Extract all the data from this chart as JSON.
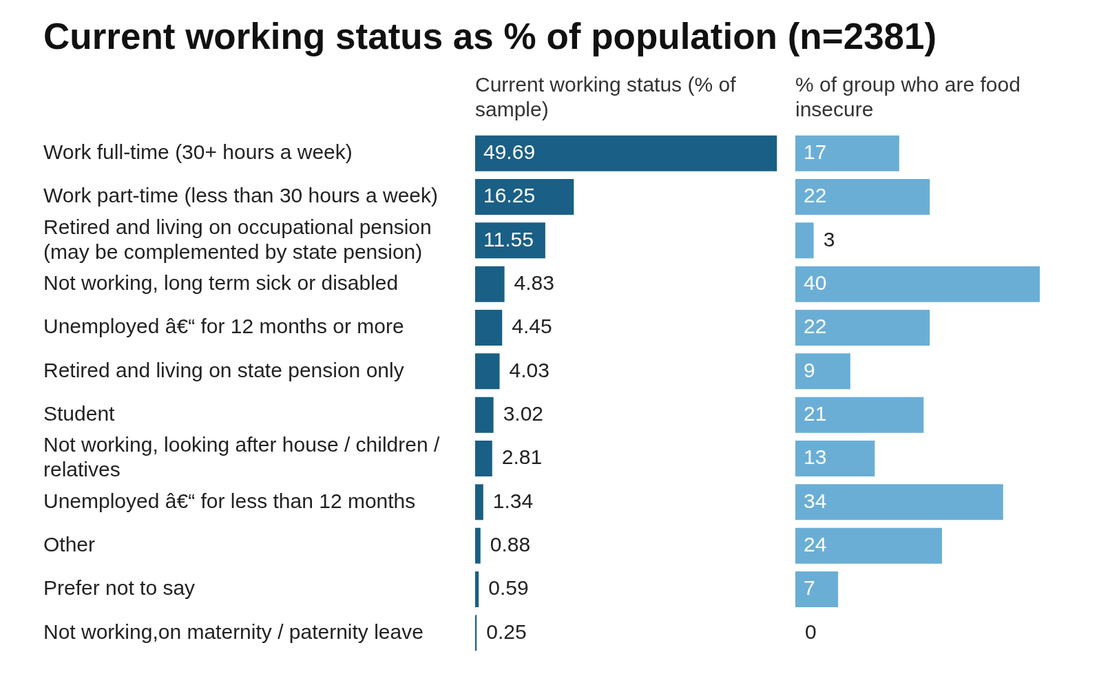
{
  "chart_data": [
    {
      "type": "bar",
      "orientation": "horizontal",
      "title": "Current working status as % of population (n=2381)",
      "subtitle": "Current working status (% of sample)",
      "color": "#1a5f85",
      "data_labels": true,
      "tick_labels": "y",
      "categories": [
        "Work full-time (30+ hours a week)",
        "Work part-time (less than 30 hours a week)",
        "Retired and living on occupational pension (may be complemented by state pension)",
        "Not working, long term sick or disabled",
        "Unemployed â€“ for 12 months or more",
        "Retired and living on state pension only",
        "Student",
        "Not working, looking after house / children / relatives",
        "Unemployed â€“ for less than 12 months",
        "Other",
        "Prefer not to say",
        "Not working,on maternity / paternity leave"
      ],
      "values": [
        49.69,
        16.25,
        11.55,
        4.83,
        4.45,
        4.03,
        3.02,
        2.81,
        1.34,
        0.88,
        0.59,
        0.25
      ]
    },
    {
      "type": "bar",
      "orientation": "horizontal",
      "subtitle": "% of group who are food insecure",
      "color": "#6aaed6",
      "data_labels": true,
      "tick_labels": false,
      "categories": [
        null,
        null,
        null,
        null,
        null,
        null,
        null,
        null,
        null,
        null,
        null,
        null
      ],
      "values": [
        17,
        22,
        3,
        40,
        22,
        9,
        21,
        13,
        34,
        24,
        7,
        0
      ]
    }
  ]
}
